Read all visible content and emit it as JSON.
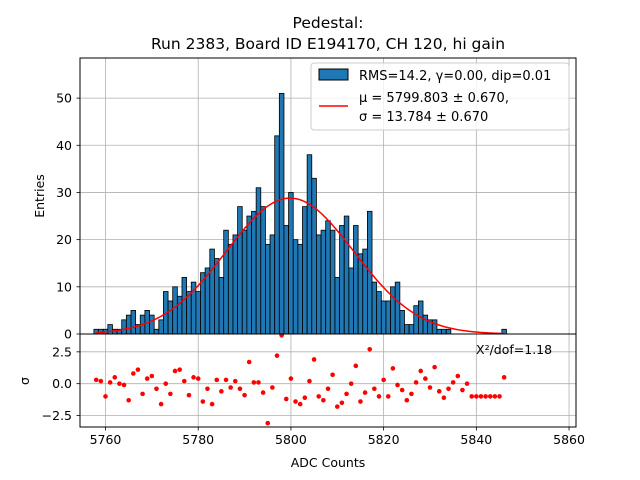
{
  "chart_data": [
    {
      "type": "bar",
      "title_line1": "Pedestal:",
      "title_line2": "Run 2383, Board ID E194170, CH 120, hi gain",
      "xlabel": "",
      "ylabel": "Entries",
      "xlim": [
        5754.5,
        5861.5
      ],
      "ylim": [
        0,
        58.5
      ],
      "xticks": [
        5760,
        5780,
        5800,
        5820,
        5840,
        5860
      ],
      "yticks": [
        0,
        10,
        20,
        30,
        40,
        50
      ],
      "ytick_labels": [
        "0",
        "10",
        "20",
        "30",
        "40",
        "50"
      ],
      "grid": true,
      "legend_position": "top-right",
      "bar_color": "#1f77b4",
      "fit_color": "#ff0000",
      "hist_label": "RMS=14.2, γ=0.00, dip=0.01",
      "fit_label_mu": "μ = 5799.803 ± 0.670,",
      "fit_label_sigma": "σ = 13.784 ± 0.670",
      "fit_amplitude": 28.8,
      "fit_mu": 5799.803,
      "fit_sigma": 13.784,
      "bins": [
        5758,
        5759,
        5760,
        5761,
        5762,
        5763,
        5764,
        5765,
        5766,
        5767,
        5768,
        5769,
        5770,
        5771,
        5772,
        5773,
        5774,
        5775,
        5776,
        5777,
        5778,
        5779,
        5780,
        5781,
        5782,
        5783,
        5784,
        5785,
        5786,
        5787,
        5788,
        5789,
        5790,
        5791,
        5792,
        5793,
        5794,
        5795,
        5796,
        5797,
        5798,
        5799,
        5800,
        5801,
        5802,
        5803,
        5804,
        5805,
        5806,
        5807,
        5808,
        5809,
        5810,
        5811,
        5812,
        5813,
        5814,
        5815,
        5816,
        5817,
        5818,
        5819,
        5820,
        5821,
        5822,
        5823,
        5824,
        5825,
        5826,
        5827,
        5828,
        5829,
        5830,
        5831,
        5832,
        5833,
        5834,
        5835,
        5836,
        5837,
        5838,
        5839,
        5840,
        5841,
        5842,
        5843,
        5844,
        5845,
        5846
      ],
      "values": [
        1,
        1,
        1,
        2,
        1,
        1,
        3,
        4,
        5,
        2,
        4,
        5,
        4,
        1,
        3,
        9,
        7,
        10,
        8,
        12,
        9,
        11,
        9,
        13,
        14,
        18,
        16,
        12,
        22,
        19,
        21,
        27,
        22,
        25,
        26,
        31,
        27,
        19,
        21,
        42,
        51,
        23,
        30,
        20,
        19,
        27,
        38,
        33,
        21,
        22,
        24,
        22,
        12,
        23,
        25,
        14,
        23,
        17,
        18,
        26,
        11,
        9,
        7,
        7,
        10,
        11,
        5,
        2,
        2,
        6,
        7,
        4,
        3,
        3,
        1,
        1,
        1,
        0,
        0,
        0,
        0,
        0,
        0,
        0,
        0,
        0,
        0,
        0,
        1
      ]
    },
    {
      "type": "scatter",
      "xlabel": "ADC Counts",
      "ylabel": "σ",
      "xlim": [
        5754.5,
        5861.5
      ],
      "ylim": [
        -3.4,
        3.9
      ],
      "xticks": [
        5760,
        5780,
        5800,
        5820,
        5840,
        5860
      ],
      "yticks": [
        -2.5,
        0.0,
        2.5
      ],
      "ytick_labels": [
        "−2.5",
        "0.0",
        "2.5"
      ],
      "grid": true,
      "point_color": "#ff0000",
      "annotation": "X²/dof=1.18",
      "x": [
        5758,
        5759,
        5760,
        5761,
        5762,
        5763,
        5764,
        5765,
        5766,
        5767,
        5768,
        5769,
        5770,
        5771,
        5772,
        5773,
        5774,
        5775,
        5776,
        5777,
        5778,
        5779,
        5780,
        5781,
        5782,
        5783,
        5784,
        5785,
        5786,
        5787,
        5788,
        5789,
        5790,
        5791,
        5792,
        5793,
        5794,
        5795,
        5796,
        5797,
        5798,
        5799,
        5800,
        5801,
        5802,
        5803,
        5804,
        5805,
        5806,
        5807,
        5808,
        5809,
        5810,
        5811,
        5812,
        5813,
        5814,
        5815,
        5816,
        5817,
        5818,
        5819,
        5820,
        5821,
        5822,
        5823,
        5824,
        5825,
        5826,
        5827,
        5828,
        5829,
        5830,
        5831,
        5832,
        5833,
        5834,
        5835,
        5836,
        5837,
        5838,
        5839,
        5840,
        5841,
        5842,
        5843,
        5844,
        5845,
        5846
      ],
      "y": [
        0.3,
        0.2,
        -1.0,
        0.1,
        0.5,
        0.0,
        -0.1,
        -1.3,
        0.8,
        1.1,
        -0.8,
        0.4,
        0.6,
        -0.4,
        -1.6,
        0.0,
        -0.8,
        1.0,
        1.1,
        0.2,
        -0.9,
        0.5,
        0.4,
        -1.4,
        -0.4,
        -1.6,
        0.3,
        -0.6,
        0.3,
        -0.3,
        0.2,
        -0.4,
        -0.9,
        1.7,
        0.1,
        0.1,
        -0.7,
        -3.1,
        -0.3,
        2.2,
        3.8,
        -1.2,
        0.4,
        -1.4,
        -1.6,
        -1.1,
        0.2,
        1.9,
        -1.0,
        -1.3,
        -0.4,
        0.7,
        -1.8,
        -1.5,
        -0.8,
        0.0,
        1.4,
        -1.4,
        -0.7,
        2.7,
        -0.4,
        -1.0,
        0.3,
        -1.0,
        1.2,
        -0.1,
        -0.5,
        -1.3,
        -0.8,
        0.1,
        1.0,
        0.4,
        -0.3,
        1.3,
        -0.6,
        -1.1,
        -0.4,
        0.1,
        0.6,
        -0.5,
        0.0,
        -1.0,
        -1.0,
        -1.0,
        -1.0,
        -1.0,
        -1.0,
        -1.0,
        0.5
      ]
    }
  ]
}
